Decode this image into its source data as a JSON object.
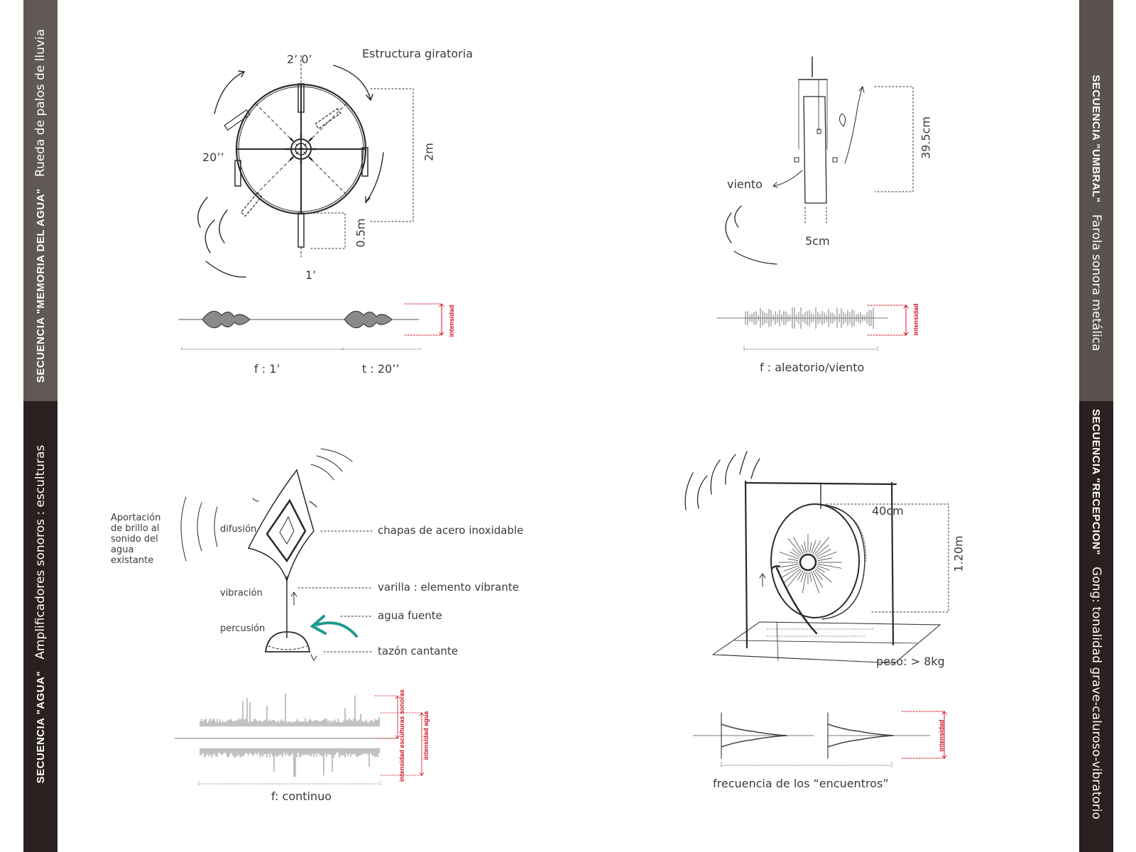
{
  "bands": {
    "memoria": {
      "sequence": "SECUENCIA \"MEMORIA DEL AGUA\"",
      "subtitle": "Rueda de palos de lluvia",
      "color": "#5f5854"
    },
    "agua": {
      "sequence": "SECUENCIA \"AGUA\"",
      "subtitle": "Amplificadores sonoros : esculturas",
      "color": "#2b2020"
    },
    "umbral": {
      "sequence": "SECUENCIA \"UMBRAL\"",
      "subtitle": "Farola sonora metálica",
      "color": "#5a524e"
    },
    "recepcion": {
      "sequence": "SECUENCIA \"RECEPCION\"",
      "subtitle": "Gong: tonalidad grave-caluroso-vibratorio",
      "color": "#2b2020"
    }
  },
  "wheel": {
    "title": "Estructura giratoria",
    "top": "2’ 0’",
    "left": "20’’",
    "height": "2m",
    "stick": "0.5m",
    "bottom": "1’",
    "freq": "f : 1’",
    "time": "t : 20’’",
    "intensity": "intensidad"
  },
  "lamp": {
    "wind": "viento",
    "height": "39.5cm",
    "width": "5cm",
    "freq": "f : aleatorio/viento",
    "intensity": "intensidad"
  },
  "sculpture": {
    "note": "Aportación de brillo al sonido del agua existante",
    "diffusion": "difusión",
    "vibration": "vibración",
    "percussion": "percusión",
    "plates": "chapas de acero inoxidable",
    "rod": "varilla : elemento vibrante",
    "fountain": "agua fuente",
    "bowl": "tazón cantante",
    "freq": "f: continuo",
    "intensity_sculptures": "intensidad esculturas sonoras",
    "intensity_water": "intensidad agua",
    "arrow_color": "#1e9a90"
  },
  "gong": {
    "width": "40cm",
    "height": "1.20m",
    "weight": "peso: > 8kg",
    "freq": "frecuencia de los “encuentros”",
    "intensity": "intensidad"
  },
  "accent_red": "#d01020"
}
